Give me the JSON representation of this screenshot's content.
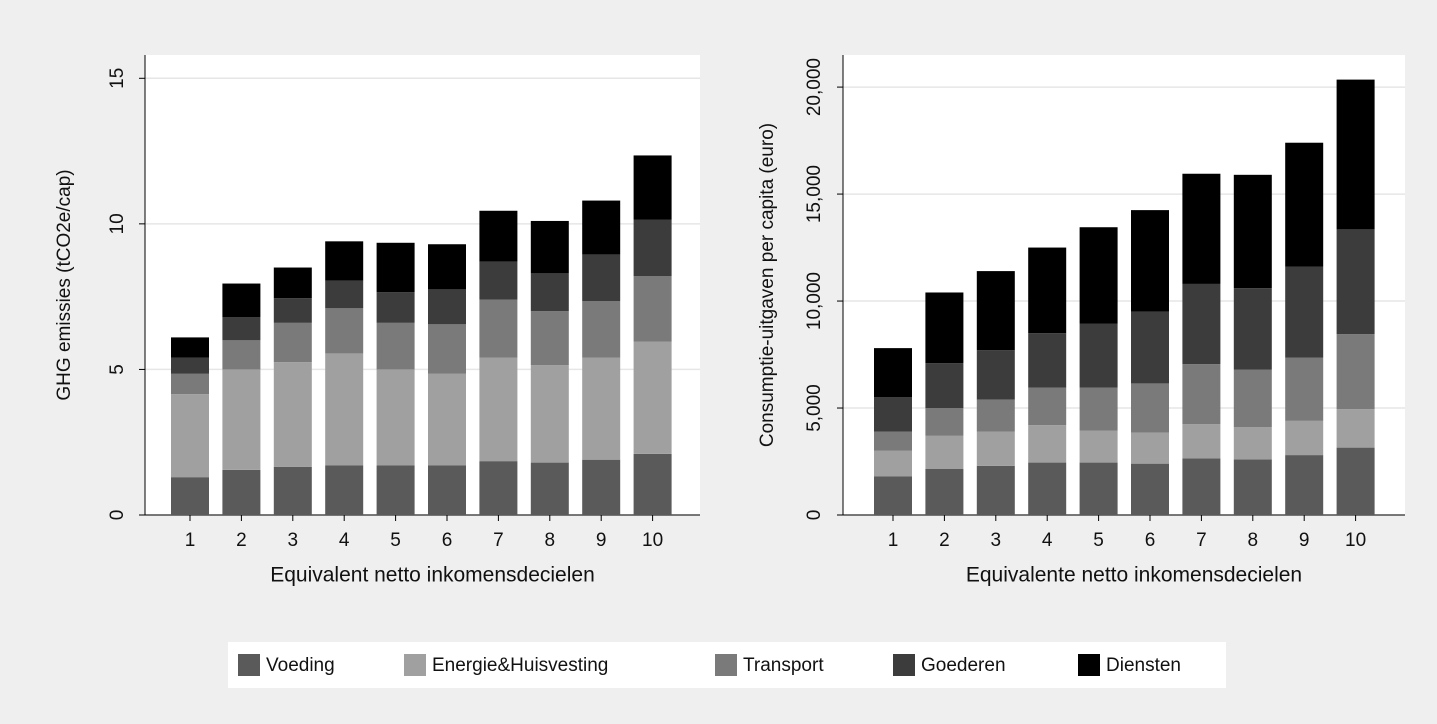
{
  "chart_data": [
    {
      "type": "stacked-bar",
      "x_label": "Equivalent netto inkomensdecielen",
      "y_label": "GHG emissies (tCO2e/cap)",
      "categories": [
        "1",
        "2",
        "3",
        "4",
        "5",
        "6",
        "7",
        "8",
        "9",
        "10"
      ],
      "ylim": [
        0,
        15.8
      ],
      "yticks": [
        0,
        5,
        10,
        15
      ],
      "grid": true,
      "series": [
        {
          "name": "Voeding",
          "color": "#5a5a5a",
          "values": [
            1.3,
            1.55,
            1.65,
            1.7,
            1.7,
            1.7,
            1.85,
            1.8,
            1.9,
            2.1
          ]
        },
        {
          "name": "Energie&Huisvesting",
          "color": "#a0a0a0",
          "values": [
            2.85,
            3.45,
            3.6,
            3.85,
            3.3,
            3.15,
            3.55,
            3.35,
            3.5,
            3.85
          ]
        },
        {
          "name": "Transport",
          "color": "#7a7a7a",
          "values": [
            0.7,
            1.0,
            1.35,
            1.55,
            1.6,
            1.7,
            2.0,
            1.85,
            1.95,
            2.25
          ]
        },
        {
          "name": "Goederen",
          "color": "#3c3c3c",
          "values": [
            0.55,
            0.8,
            0.85,
            0.95,
            1.05,
            1.2,
            1.3,
            1.3,
            1.6,
            1.95
          ]
        },
        {
          "name": "Diensten",
          "color": "#000000",
          "values": [
            0.7,
            1.15,
            1.05,
            1.35,
            1.7,
            1.55,
            1.75,
            1.8,
            1.85,
            2.2
          ]
        }
      ]
    },
    {
      "type": "stacked-bar",
      "x_label": "Equivalente netto inkomensdecielen",
      "y_label": "Consumptie-uitgaven per capita (euro)",
      "categories": [
        "1",
        "2",
        "3",
        "4",
        "5",
        "6",
        "7",
        "8",
        "9",
        "10"
      ],
      "ylim": [
        0,
        21500
      ],
      "yticks": [
        0,
        {
          "value": 5000,
          "label": "5,000"
        },
        {
          "value": 10000,
          "label": "10,000"
        },
        {
          "value": 15000,
          "label": "15,000"
        },
        {
          "value": 20000,
          "label": "20,000"
        }
      ],
      "grid": true,
      "series": [
        {
          "color": "#5a5a5a",
          "values": [
            1800,
            2150,
            2300,
            2450,
            2450,
            2400,
            2650,
            2600,
            2800,
            3150
          ]
        },
        {
          "color": "#a0a0a0",
          "values": [
            1200,
            1550,
            1600,
            1750,
            1500,
            1450,
            1600,
            1500,
            1600,
            1800
          ]
        },
        {
          "color": "#7a7a7a",
          "values": [
            900,
            1300,
            1500,
            1750,
            2000,
            2300,
            2800,
            2700,
            2950,
            3500
          ]
        },
        {
          "color": "#3c3c3c",
          "values": [
            1600,
            2100,
            2300,
            2550,
            3000,
            3350,
            3750,
            3800,
            4250,
            4900
          ]
        },
        {
          "color": "#000000",
          "values": [
            2300,
            3300,
            3700,
            4000,
            4500,
            4750,
            5150,
            5300,
            5800,
            7000
          ]
        }
      ]
    }
  ]
}
